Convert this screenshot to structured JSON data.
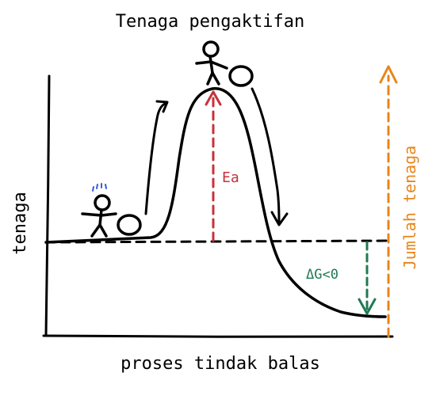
{
  "title": "Tenaga pengaktifan",
  "y_axis_label": "tenaga",
  "x_axis_label": "proses tindak balas",
  "activation_energy_label": "Ea",
  "delta_g_label": "ΔG<0",
  "total_energy_label": "Jumlah tenaga",
  "colors": {
    "ink": "#000000",
    "activation_arrow": "#c8313a",
    "delta_g_arrow": "#1f7a52",
    "total_energy_arrow": "#e8851a",
    "sweat_marks": "#3a5bd6"
  }
}
